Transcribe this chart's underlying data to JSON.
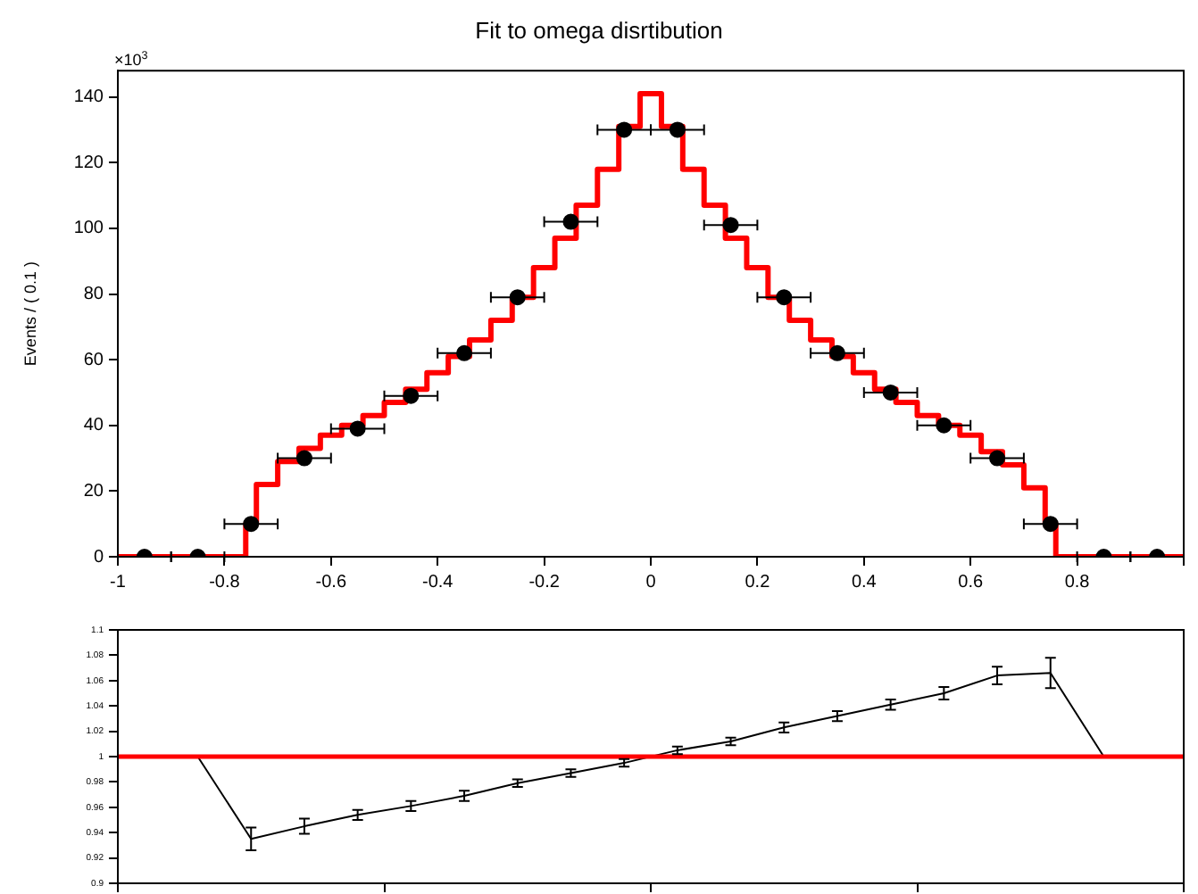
{
  "chart_data": [
    {
      "type": "scatter",
      "title": "Fit to omega disrtibution",
      "ylabel": "Events / ( 0.1 )",
      "annotations": [
        "×10$^{3}$"
      ],
      "xlim": [
        -1,
        1
      ],
      "xticks": [
        -1,
        -0.8,
        -0.6,
        -0.4,
        -0.2,
        0,
        0.2,
        0.4,
        0.6,
        0.8,
        {
          "value": 1,
          "label": null
        }
      ],
      "ylim": [
        0,
        148
      ],
      "yticks": [
        0,
        20,
        40,
        60,
        80,
        100,
        120,
        140
      ],
      "grid": false,
      "series": [
        {
          "type": "step",
          "marker": "none",
          "color": "#ff0000",
          "x": [
            -1,
            -0.76,
            -0.74,
            -0.7,
            -0.66,
            -0.62,
            -0.58,
            -0.54,
            -0.5,
            -0.46,
            -0.42,
            -0.38,
            -0.34,
            -0.3,
            -0.26,
            -0.22,
            -0.18,
            -0.14,
            -0.1,
            -0.06,
            -0.02,
            0.02,
            0.06,
            0.1,
            0.14,
            0.18,
            0.22,
            0.26,
            0.3,
            0.34,
            0.38,
            0.42,
            0.46,
            0.5,
            0.54,
            0.58,
            0.62,
            0.66,
            0.7,
            0.74,
            0.76,
            1
          ],
          "values": [
            0,
            10,
            22,
            29,
            33,
            37,
            40,
            43,
            47,
            51,
            56,
            61,
            66,
            72,
            79,
            88,
            97,
            107,
            118,
            131,
            141,
            131,
            118,
            107,
            97,
            88,
            79,
            72,
            66,
            61,
            56,
            51,
            47,
            43,
            40,
            37,
            32,
            28,
            21,
            10,
            0,
            0
          ]
        },
        {
          "marker": "circle",
          "color": "#000000",
          "x": [
            -0.95,
            -0.85,
            -0.75,
            -0.65,
            -0.55,
            -0.45,
            -0.35,
            -0.25,
            -0.15,
            -0.05,
            0.05,
            0.15,
            0.25,
            0.35,
            0.45,
            0.55,
            0.65,
            0.75,
            0.85,
            0.95
          ],
          "values": [
            0,
            0,
            10,
            30,
            39,
            49,
            62,
            79,
            102,
            130,
            130,
            101,
            79,
            62,
            50,
            40,
            30,
            10,
            0,
            0
          ],
          "xerrors": [
            0.05,
            0.05,
            0.05,
            0.05,
            0.05,
            0.05,
            0.05,
            0.05,
            0.05,
            0.05,
            0.05,
            0.05,
            0.05,
            0.05,
            0.05,
            0.05,
            0.05,
            0.05,
            0.05,
            0.05
          ]
        }
      ]
    },
    {
      "type": "line",
      "xlim": [
        -1,
        1
      ],
      "xticks": [
        {
          "value": -1,
          "label": null
        },
        {
          "value": -0.5,
          "label": null
        },
        {
          "value": 0,
          "label": null
        },
        {
          "value": 0.5,
          "label": null
        },
        {
          "value": 1,
          "label": null
        }
      ],
      "ylim": [
        0.9,
        1.1
      ],
      "yticks": [
        0.9,
        0.92,
        0.94,
        0.96,
        0.98,
        1,
        1.02,
        1.04,
        1.06,
        1.08,
        1.1
      ],
      "tick_labels": "y",
      "grid": false,
      "ref_lines": [
        {
          "axis": "y",
          "value": 1,
          "color": "#ff0000"
        }
      ],
      "series": [
        {
          "color": "#000000",
          "x": [
            -0.85,
            -0.75,
            -0.65,
            -0.55,
            -0.45,
            -0.35,
            -0.25,
            -0.15,
            -0.05,
            0.05,
            0.15,
            0.25,
            0.35,
            0.45,
            0.55,
            0.65,
            0.75,
            0.85
          ],
          "values": [
            1,
            0.935,
            0.945,
            0.954,
            0.961,
            0.969,
            0.979,
            0.987,
            0.995,
            1.005,
            1.012,
            1.023,
            1.032,
            1.041,
            1.05,
            1.064,
            1.066,
            1
          ],
          "errors": [
            null,
            0.009,
            0.006,
            0.004,
            0.004,
            0.004,
            0.003,
            0.003,
            0.003,
            0.003,
            0.003,
            0.004,
            0.004,
            0.004,
            0.005,
            0.007,
            0.012,
            null
          ]
        }
      ]
    }
  ]
}
